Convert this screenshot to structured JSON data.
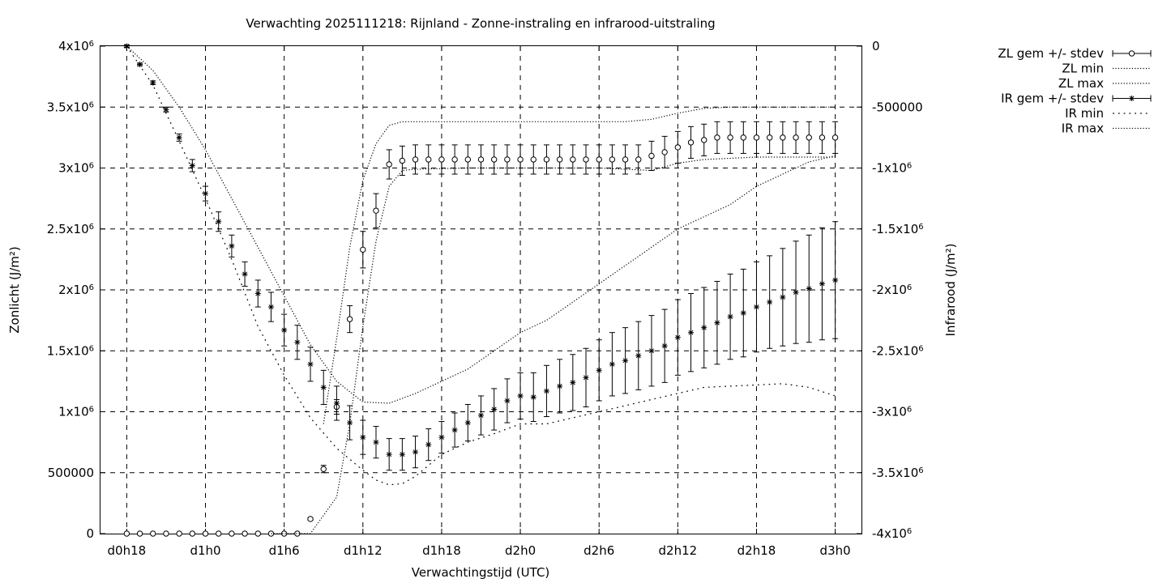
{
  "chart_data": {
    "type": "line",
    "title": "Verwachting 2025111218: Rijnland - Zonne-instraling en infrarood-uitstraling",
    "xlabel": "Verwachtingstijd (UTC)",
    "ylabel": "Zonlicht (J/m²)",
    "y2label": "Infrarood (J/m²)",
    "x_ticks": [
      "d0h18",
      "d1h0",
      "d1h6",
      "d1h12",
      "d1h18",
      "d2h0",
      "d2h6",
      "d2h12",
      "d2h18",
      "d3h0"
    ],
    "x_tick_hours": [
      18,
      24,
      30,
      36,
      42,
      48,
      54,
      60,
      66,
      72
    ],
    "xlim": [
      16,
      74
    ],
    "ylim": [
      0,
      4000000
    ],
    "y2lim": [
      -4000000,
      0
    ],
    "y_ticks": [
      0,
      500000,
      1000000,
      1500000,
      2000000,
      2500000,
      3000000,
      3500000,
      4000000
    ],
    "y_tick_labels": [
      "0",
      "500000",
      "1x10^6",
      "1.5x10^6",
      "2x10^6",
      "2.5x10^6",
      "3x10^6",
      "3.5x10^6",
      "4x10^6"
    ],
    "y2_ticks": [
      0,
      -500000,
      -1000000,
      -1500000,
      -2000000,
      -2500000,
      -3000000,
      -3500000,
      -4000000
    ],
    "y2_tick_labels": [
      "0",
      "-500000",
      "-1x10^6",
      "-1.5x10^6",
      "-2x10^6",
      "-2.5x10^6",
      "-3x10^6",
      "-3.5x10^6",
      "-4x10^6"
    ],
    "grid": true,
    "legend_position": "outside-top-right",
    "series": [
      {
        "name": "ZL gem +/- stdev",
        "axis": "y",
        "style": "errorbars-circle",
        "x": [
          18,
          19,
          20,
          21,
          22,
          23,
          24,
          25,
          26,
          27,
          28,
          29,
          30,
          31,
          32,
          33,
          34,
          35,
          36,
          37,
          38,
          39,
          40,
          41,
          42,
          43,
          44,
          45,
          46,
          47,
          48,
          49,
          50,
          51,
          52,
          53,
          54,
          55,
          56,
          57,
          58,
          59,
          60,
          61,
          62,
          63,
          64,
          65,
          66,
          67,
          68,
          69,
          70,
          71,
          72
        ],
        "values": [
          0,
          0,
          0,
          0,
          0,
          0,
          0,
          0,
          0,
          0,
          0,
          0,
          0,
          0,
          120000,
          530000,
          1040000,
          1760000,
          2330000,
          2650000,
          3030000,
          3060000,
          3070000,
          3070000,
          3070000,
          3070000,
          3070000,
          3070000,
          3070000,
          3070000,
          3070000,
          3070000,
          3070000,
          3070000,
          3070000,
          3070000,
          3070000,
          3070000,
          3070000,
          3070000,
          3100000,
          3130000,
          3170000,
          3210000,
          3230000,
          3250000,
          3250000,
          3250000,
          3250000,
          3250000,
          3250000,
          3250000,
          3250000,
          3250000,
          3250000
        ],
        "stdev": [
          0,
          0,
          0,
          0,
          0,
          0,
          0,
          0,
          0,
          0,
          0,
          0,
          0,
          0,
          10000,
          30000,
          60000,
          110000,
          150000,
          140000,
          120000,
          120000,
          120000,
          120000,
          120000,
          120000,
          120000,
          120000,
          120000,
          120000,
          120000,
          120000,
          120000,
          120000,
          120000,
          120000,
          120000,
          120000,
          120000,
          120000,
          120000,
          130000,
          130000,
          130000,
          130000,
          130000,
          130000,
          130000,
          130000,
          130000,
          130000,
          130000,
          130000,
          130000,
          130000
        ]
      },
      {
        "name": "ZL min",
        "axis": "y",
        "style": "dotted",
        "x": [
          29,
          30,
          32,
          34,
          35,
          36,
          37,
          38,
          39,
          40,
          44,
          48,
          52,
          54,
          56,
          58,
          60,
          62,
          64,
          66,
          68,
          70,
          72
        ],
        "values": [
          0,
          0,
          0,
          300000,
          900000,
          1700000,
          2400000,
          2850000,
          2980000,
          2990000,
          3000000,
          3000000,
          3000000,
          3000000,
          2990000,
          2980000,
          3040000,
          3070000,
          3080000,
          3090000,
          3090000,
          3090000,
          3090000
        ]
      },
      {
        "name": "ZL max",
        "axis": "y",
        "style": "dotted",
        "x": [
          33,
          34,
          35,
          36,
          37,
          38,
          39,
          40,
          44,
          48,
          52,
          54,
          56,
          58,
          60,
          62,
          64,
          66,
          68,
          70,
          72
        ],
        "values": [
          900000,
          1600000,
          2350000,
          2900000,
          3200000,
          3350000,
          3380000,
          3380000,
          3380000,
          3380000,
          3380000,
          3380000,
          3380000,
          3400000,
          3450000,
          3490000,
          3500000,
          3500000,
          3500000,
          3500000,
          3500000
        ]
      },
      {
        "name": "IR gem +/- stdev",
        "axis": "y2",
        "style": "errorbars-star",
        "x": [
          18,
          19,
          20,
          21,
          22,
          23,
          24,
          25,
          26,
          27,
          28,
          29,
          30,
          31,
          32,
          33,
          34,
          35,
          36,
          37,
          38,
          39,
          40,
          41,
          42,
          43,
          44,
          45,
          46,
          47,
          48,
          49,
          50,
          51,
          52,
          53,
          54,
          55,
          56,
          57,
          58,
          59,
          60,
          61,
          62,
          63,
          64,
          65,
          66,
          67,
          68,
          69,
          70,
          71,
          72
        ],
        "values": [
          0,
          -150000,
          -300000,
          -520000,
          -750000,
          -980000,
          -1210000,
          -1440000,
          -1640000,
          -1870000,
          -2030000,
          -2140000,
          -2330000,
          -2430000,
          -2610000,
          -2800000,
          -2930000,
          -3090000,
          -3210000,
          -3250000,
          -3350000,
          -3350000,
          -3330000,
          -3270000,
          -3210000,
          -3150000,
          -3090000,
          -3030000,
          -2980000,
          -2910000,
          -2870000,
          -2880000,
          -2830000,
          -2790000,
          -2760000,
          -2720000,
          -2660000,
          -2610000,
          -2580000,
          -2540000,
          -2500000,
          -2460000,
          -2390000,
          -2350000,
          -2310000,
          -2270000,
          -2220000,
          -2190000,
          -2140000,
          -2100000,
          -2060000,
          -2020000,
          -1990000,
          -1950000,
          -1920000
        ],
        "stdev": [
          10000,
          10000,
          15000,
          20000,
          30000,
          50000,
          60000,
          80000,
          90000,
          100000,
          110000,
          120000,
          130000,
          140000,
          140000,
          140000,
          140000,
          140000,
          140000,
          130000,
          130000,
          130000,
          130000,
          130000,
          130000,
          140000,
          150000,
          160000,
          170000,
          180000,
          190000,
          200000,
          210000,
          220000,
          230000,
          240000,
          250000,
          260000,
          270000,
          280000,
          290000,
          300000,
          310000,
          320000,
          330000,
          340000,
          350000,
          360000,
          370000,
          380000,
          400000,
          420000,
          440000,
          460000,
          480000
        ]
      },
      {
        "name": "IR min",
        "axis": "y2",
        "style": "sparse-dotted",
        "x": [
          18,
          20,
          22,
          24,
          26,
          28,
          30,
          32,
          34,
          36,
          37,
          38,
          39,
          40,
          42,
          44,
          46,
          48,
          50,
          52,
          54,
          56,
          58,
          60,
          62,
          64,
          66,
          68,
          70,
          72
        ],
        "values": [
          0,
          -320000,
          -780000,
          -1250000,
          -1750000,
          -2300000,
          -2700000,
          -3050000,
          -3300000,
          -3480000,
          -3560000,
          -3600000,
          -3590000,
          -3530000,
          -3350000,
          -3250000,
          -3180000,
          -3100000,
          -3100000,
          -3050000,
          -3000000,
          -2950000,
          -2900000,
          -2850000,
          -2800000,
          -2790000,
          -2780000,
          -2770000,
          -2800000,
          -2870000
        ]
      },
      {
        "name": "IR max",
        "axis": "y2",
        "style": "dotted",
        "x": [
          18,
          20,
          22,
          24,
          26,
          28,
          30,
          32,
          34,
          36,
          38,
          40,
          42,
          44,
          46,
          48,
          50,
          52,
          54,
          56,
          58,
          60,
          62,
          64,
          66,
          68,
          70,
          72
        ],
        "values": [
          0,
          -200000,
          -500000,
          -850000,
          -1250000,
          -1650000,
          -2050000,
          -2450000,
          -2750000,
          -2920000,
          -2930000,
          -2850000,
          -2750000,
          -2650000,
          -2500000,
          -2350000,
          -2250000,
          -2100000,
          -1950000,
          -1800000,
          -1650000,
          -1500000,
          -1400000,
          -1300000,
          -1150000,
          -1050000,
          -950000,
          -900000
        ]
      }
    ]
  }
}
